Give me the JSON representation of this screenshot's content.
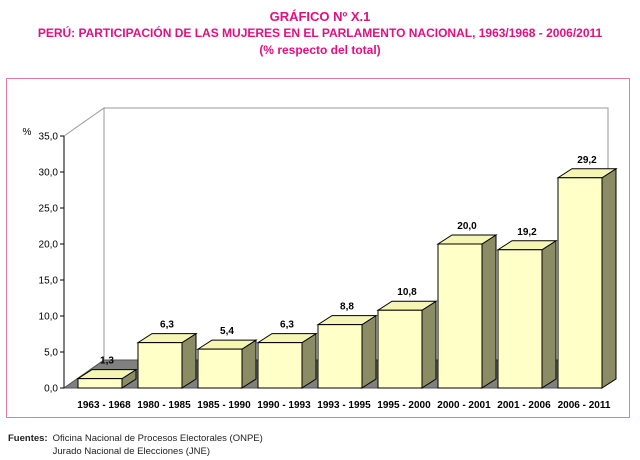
{
  "header": {
    "figure_number": "GRÁFICO Nº X.1",
    "title": "PERÚ: PARTICIPACIÓN DE LAS MUJERES EN EL PARLAMENTO NACIONAL, 1963/1968 - 2006/2011",
    "subtitle": "(% respecto del total)"
  },
  "sources": {
    "label": "Fuentes:",
    "items": [
      "Oficina Nacional de Procesos Electorales (ONPE)",
      "Jurado Nacional de Elecciones (JNE)"
    ]
  },
  "colors": {
    "title": "#e0107f",
    "bar_front": "#ffffc8",
    "bar_top": "#f5f5b4",
    "bar_side": "#8c8c64",
    "floor": "#808080",
    "frame": "#e07aa9"
  },
  "chart_data": {
    "type": "bar",
    "ylabel": "%",
    "ylim": [
      0,
      35
    ],
    "y_ticks": [
      "0,0",
      "5,0",
      "10,0",
      "15,0",
      "20,0",
      "25,0",
      "30,0",
      "35,0"
    ],
    "categories": [
      "1963 - 1968",
      "1980 - 1985",
      "1985 - 1990",
      "1990 - 1993",
      "1993 - 1995",
      "1995 - 2000",
      "2000 - 2001",
      "2001 - 2006",
      "2006 - 2011"
    ],
    "values": [
      1.3,
      6.3,
      5.4,
      6.3,
      8.8,
      10.8,
      20.0,
      19.2,
      29.2
    ],
    "data_labels": [
      "1,3",
      "6,3",
      "5,4",
      "6,3",
      "8,8",
      "10,8",
      "20,0",
      "19,2",
      "29,2"
    ],
    "grid": false,
    "legend": "none",
    "style": "3d-column"
  }
}
